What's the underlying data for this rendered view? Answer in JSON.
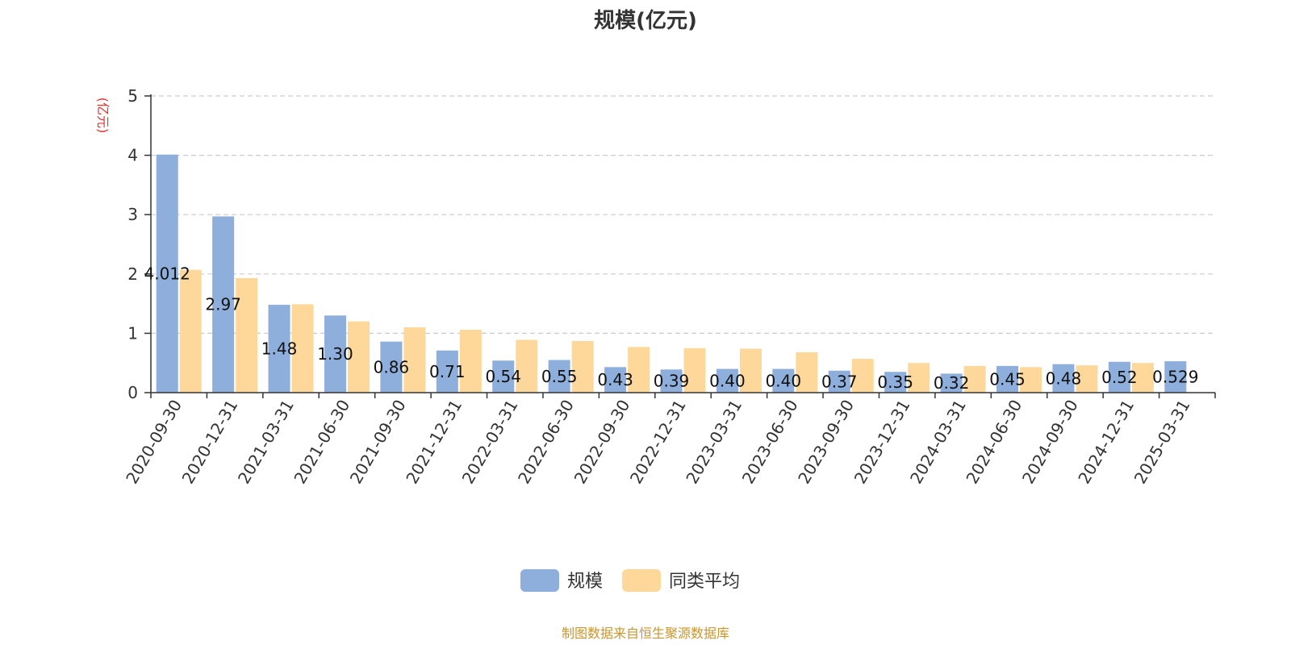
{
  "chart_data": {
    "type": "bar",
    "title": "规模(亿元)",
    "ylabel": "(亿元)",
    "ylim": [
      0,
      5
    ],
    "yticks": [
      0,
      1,
      2,
      3,
      4,
      5
    ],
    "grid": true,
    "legend_placement": "bottom-center",
    "categories": [
      "2020-09-30",
      "2020-12-31",
      "2021-03-31",
      "2021-06-30",
      "2021-09-30",
      "2021-12-31",
      "2022-03-31",
      "2022-06-30",
      "2022-09-30",
      "2022-12-31",
      "2023-03-31",
      "2023-06-30",
      "2023-09-30",
      "2023-12-31",
      "2024-03-31",
      "2024-06-30",
      "2024-09-30",
      "2024-12-31",
      "2025-03-31"
    ],
    "series": [
      {
        "name": "规模",
        "color": "#8eaedb",
        "values": [
          4.012,
          2.97,
          1.48,
          1.3,
          0.86,
          0.71,
          0.54,
          0.55,
          0.43,
          0.39,
          0.4,
          0.4,
          0.37,
          0.35,
          0.32,
          0.45,
          0.48,
          0.52,
          0.529
        ],
        "labels": [
          "4.012",
          "2.97",
          "1.48",
          "1.30",
          "0.86",
          "0.71",
          "0.54",
          "0.55",
          "0.43",
          "0.39",
          "0.40",
          "0.40",
          "0.37",
          "0.35",
          "0.32",
          "0.45",
          "0.48",
          "0.52",
          "0.529"
        ]
      },
      {
        "name": "同类平均",
        "color": "#fdd89a",
        "values": [
          2.07,
          1.93,
          1.49,
          1.2,
          1.1,
          1.06,
          0.89,
          0.87,
          0.77,
          0.75,
          0.74,
          0.68,
          0.57,
          0.5,
          0.45,
          0.43,
          0.46,
          0.5,
          null
        ]
      }
    ],
    "source": "制图数据来自恒生聚源数据库",
    "colors": {
      "unit": "#e8302c",
      "source": "#c9962e",
      "axis": "#333333",
      "grid": "#cccccc"
    }
  }
}
